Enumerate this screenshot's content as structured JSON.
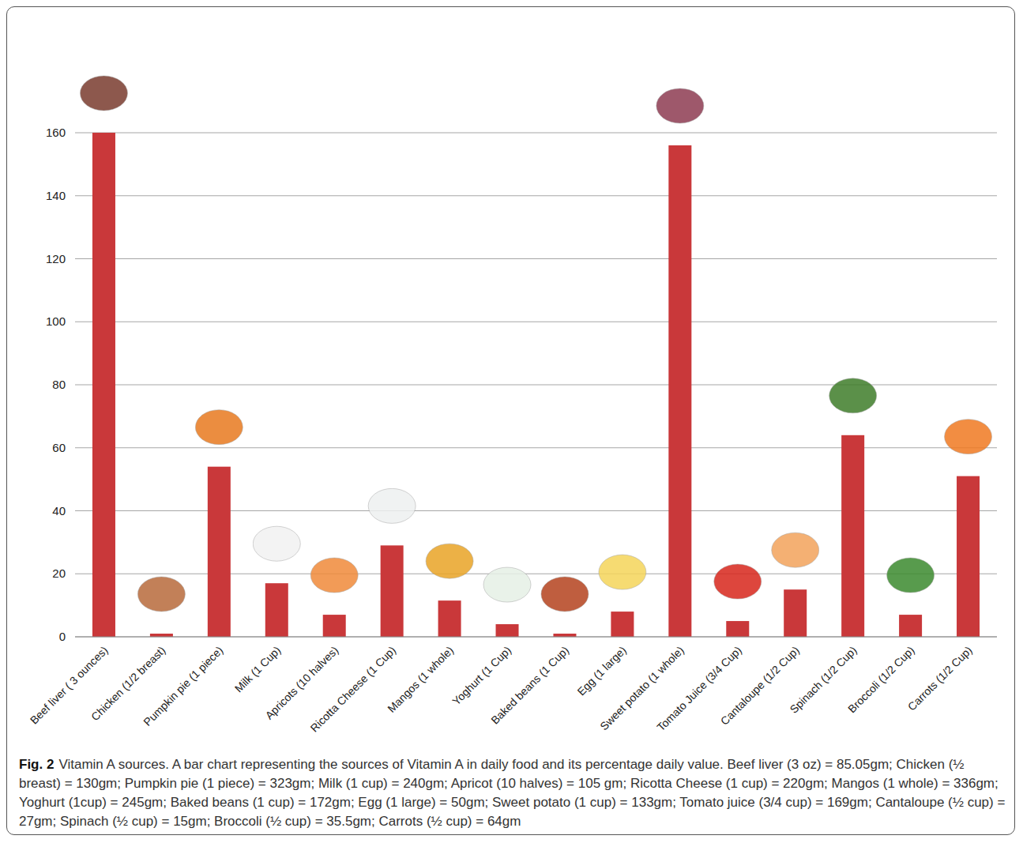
{
  "chart_data": {
    "type": "bar",
    "title": "Fig. 2",
    "subtitle": "Vitamin A sources. A bar chart representing the sources of Vitamin A in daily food and its percentage daily value. Beef liver (3 oz) = 85.05gm; Chicken (½ breast) = 130gm; Pumpkin pie (1 piece) = 323gm; Milk (1 cup) = 240gm; Apricot (10 halves) = 105 gm; Ricotta Cheese (1 cup) = 220gm; Mangos (1 whole) = 336gm; Yoghurt (1cup) = 245gm; Baked beans (1 cup) = 172gm; Egg (1 large) = 50gm; Sweet potato (1 cup) = 133gm; Tomato juice (3/4 cup) = 169gm; Cantaloupe (½ cup) = 27gm; Spinach (½ cup) = 15gm; Broccoli (½ cup) = 35.5gm; Carrots (½ cup) = 64gm",
    "categories": [
      "Beef liver ( 3 ounces)",
      "Chicken (1/2 breast)",
      "Pumpkin pie (1 piece)",
      "Milk (1 Cup)",
      "Apricots (10 halves)",
      "Ricotta Cheese (1 Cup)",
      "Mangos (1 whole)",
      "Yoghurt (1 Cup)",
      "Baked beans (1 Cup)",
      "Egg (1 large)",
      "Sweet potato (1 whole)",
      "Tomato Juice (3/4 Cup)",
      "Cantaloupe (1/2 Cup)",
      "Spinach (1/2 Cup)",
      "Broccoli (1/2 Cup)",
      "Carrots (1/2 Cup)"
    ],
    "values": [
      160,
      1,
      54,
      17,
      7,
      29,
      11.5,
      4,
      1,
      8,
      156,
      5,
      15,
      64,
      7,
      51
    ],
    "color": "#c9383a",
    "ylim": [
      0,
      160
    ],
    "yticks": [
      0,
      20,
      40,
      60,
      80,
      100,
      120,
      140,
      160
    ],
    "grid": true
  }
}
